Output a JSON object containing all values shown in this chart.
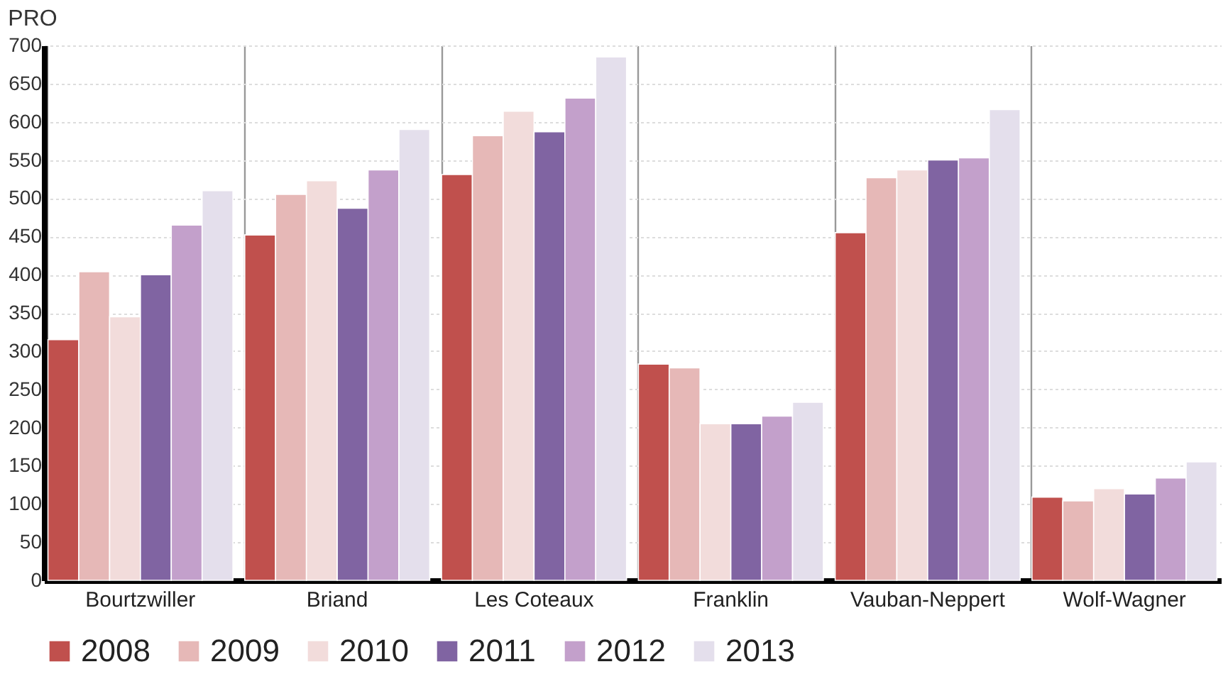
{
  "chart_data": {
    "type": "bar",
    "title": "PRO",
    "categories": [
      "Bourtzwiller",
      "Briand",
      "Les Coteaux",
      "Franklin",
      "Vauban-Neppert",
      "Wolf-Wagner"
    ],
    "series": [
      {
        "name": "2008",
        "color": "#c0504d",
        "values": [
          315,
          452,
          531,
          283,
          455,
          109
        ]
      },
      {
        "name": "2009",
        "color": "#e6b8b7",
        "values": [
          404,
          505,
          582,
          278,
          527,
          104
        ]
      },
      {
        "name": "2010",
        "color": "#f2dcdb",
        "values": [
          345,
          523,
          614,
          205,
          537,
          120
        ]
      },
      {
        "name": "2011",
        "color": "#8064a2",
        "values": [
          400,
          487,
          587,
          205,
          550,
          113
        ]
      },
      {
        "name": "2012",
        "color": "#c3a0cb",
        "values": [
          465,
          537,
          631,
          215,
          553,
          134
        ]
      },
      {
        "name": "2013",
        "color": "#e4dfec",
        "values": [
          510,
          590,
          685,
          233,
          616,
          155
        ]
      }
    ],
    "ylim": [
      0,
      700
    ],
    "yticks": [
      0,
      50,
      100,
      150,
      200,
      250,
      300,
      350,
      400,
      450,
      500,
      550,
      600,
      650,
      700
    ],
    "grid": true,
    "legend": "bottom"
  }
}
